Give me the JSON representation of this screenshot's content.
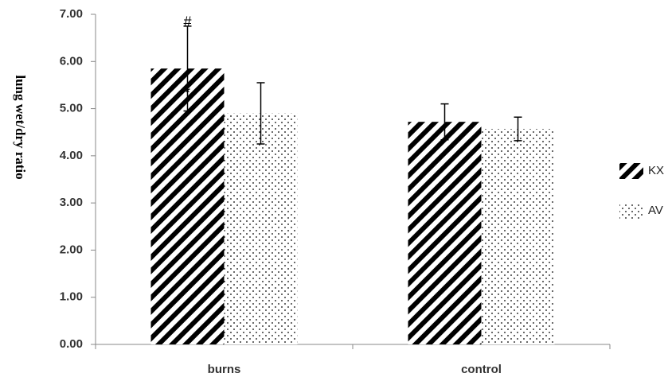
{
  "chart_data": {
    "type": "bar",
    "y_label": "lung wet/dry ratio",
    "categories": [
      "burns",
      "control"
    ],
    "series": [
      {
        "name": "KX",
        "color": "#000000",
        "pattern": "stripes",
        "values": [
          5.85,
          4.72
        ],
        "errors": [
          0.9,
          0.38
        ]
      },
      {
        "name": "AV",
        "color": "#000000",
        "pattern": "dots",
        "values": [
          4.9,
          4.57
        ],
        "errors": [
          0.65,
          0.25
        ]
      }
    ],
    "annotations": [
      "#",
      "*"
    ],
    "ylim": [
      0,
      7
    ],
    "yticks": [
      {
        "value": 0,
        "label": "0.00"
      },
      {
        "value": 1,
        "label": "1.00"
      },
      {
        "value": 2,
        "label": "2.00"
      },
      {
        "value": 3,
        "label": "3.00"
      },
      {
        "value": 4,
        "label": "4.00"
      },
      {
        "value": 5,
        "label": "5.00"
      },
      {
        "value": 6,
        "label": "6.00"
      },
      {
        "value": 7,
        "label": "7.00"
      }
    ],
    "grid": false,
    "legend": "right"
  }
}
